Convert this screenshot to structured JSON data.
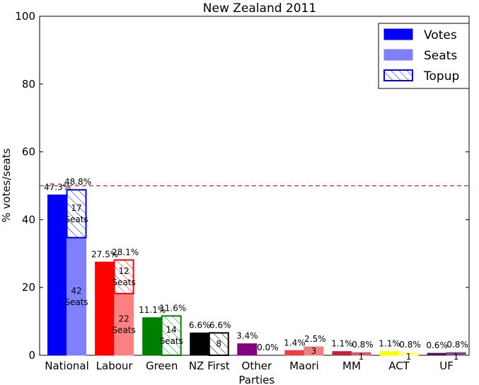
{
  "chart_data": {
    "type": "bar",
    "title": "New Zealand 2011",
    "ylabel": "% votes/seats",
    "xlabel": "",
    "ylim": [
      0,
      100
    ],
    "yticks": [
      0,
      20,
      40,
      60,
      80,
      100
    ],
    "threshold": 50,
    "legend": {
      "placement": "top-right",
      "entries": [
        "Votes",
        "Seats",
        "Topup"
      ]
    },
    "parties": [
      {
        "name": "National",
        "color": "#0000ff",
        "seats_color": "#8080ff",
        "votes": 47.3,
        "votes_label": "47.3%",
        "seats": 48.8,
        "seats_label": "48.8%",
        "electorate": 34.7,
        "electorate_label": [
          "42",
          "Seats"
        ],
        "topup_label": [
          "17",
          "Seats"
        ]
      },
      {
        "name": "Labour",
        "color": "#ff0000",
        "seats_color": "#ff8080",
        "votes": 27.5,
        "votes_label": "27.5%",
        "seats": 28.1,
        "seats_label": "28.1%",
        "electorate": 18.2,
        "electorate_label": [
          "22",
          "Seats"
        ],
        "topup_label": [
          "12",
          "Seats"
        ]
      },
      {
        "name": "Green",
        "color": "#008000",
        "seats_color": "#008000",
        "votes": 11.1,
        "votes_label": "11.1%",
        "seats": 11.6,
        "seats_label": "11.6%",
        "electorate": 0,
        "electorate_label": [],
        "topup_label": [
          "14",
          "Seats"
        ]
      },
      {
        "name": "NZ First",
        "color": "#000000",
        "seats_color": "#000000",
        "votes": 6.6,
        "votes_label": "6.6%",
        "seats": 6.6,
        "seats_label": "6.6%",
        "electorate": 0,
        "electorate_label": [],
        "topup_label": [
          "8"
        ]
      },
      {
        "name": "Other\nParties",
        "color": "#800080",
        "seats_color": "#800080",
        "votes": 3.4,
        "votes_label": "3.4%",
        "seats": 0.0,
        "seats_label": "0.0%",
        "electorate": 0,
        "electorate_label": [],
        "topup_label": []
      },
      {
        "name": "Maori",
        "color": "#e84040",
        "seats_color": "#f08080",
        "votes": 1.4,
        "votes_label": "1.4%",
        "seats": 2.5,
        "seats_label": "2.5%",
        "electorate": 2.5,
        "electorate_label": [
          "3"
        ],
        "topup_label": []
      },
      {
        "name": "MM",
        "color": "#c0203a",
        "seats_color": "#d06070",
        "votes": 1.1,
        "votes_label": "1.1%",
        "seats": 0.8,
        "seats_label": "0.8%",
        "electorate": 0.8,
        "electorate_label": [
          "1"
        ],
        "topup_label": []
      },
      {
        "name": "ACT",
        "color": "#ffff00",
        "seats_color": "#ffff80",
        "votes": 1.1,
        "votes_label": "1.1%",
        "seats": 0.8,
        "seats_label": "0.8%",
        "electorate": 0.8,
        "electorate_label": [
          "1"
        ],
        "topup_label": []
      },
      {
        "name": "UF",
        "color": "#501850",
        "seats_color": "#804880",
        "votes": 0.6,
        "votes_label": "0.6%",
        "seats": 0.8,
        "seats_label": "0.8%",
        "electorate": 0.8,
        "electorate_label": [
          "1"
        ],
        "topup_label": []
      }
    ]
  }
}
